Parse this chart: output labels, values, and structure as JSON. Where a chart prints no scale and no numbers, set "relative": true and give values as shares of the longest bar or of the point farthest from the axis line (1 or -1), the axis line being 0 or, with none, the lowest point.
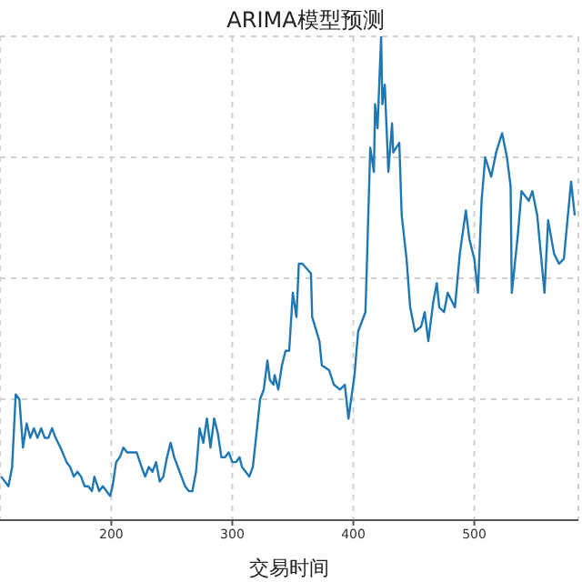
{
  "chart_data": {
    "type": "line",
    "title": "ARIMA模型预测",
    "xlabel": "交易时间",
    "relative": true,
    "xlim": [
      108,
      586
    ],
    "xticks": [
      200,
      300,
      400,
      500
    ],
    "grid": true,
    "legend": false,
    "marker": "none",
    "line_style": "solid",
    "series": [
      {
        "color": "#1f77b4",
        "x": [
          109,
          115,
          118,
          121,
          124,
          127,
          130,
          133,
          136,
          139,
          142,
          145,
          148,
          151,
          154,
          158,
          163,
          166,
          169,
          172,
          175,
          178,
          181,
          184,
          186,
          190,
          193,
          196,
          199,
          201,
          204,
          207,
          210,
          213,
          216,
          221,
          225,
          228,
          231,
          234,
          237,
          240,
          243,
          246,
          249,
          252,
          255,
          258,
          261,
          264,
          267,
          270,
          273,
          276,
          279,
          282,
          285,
          288,
          291,
          294,
          297,
          300,
          303,
          306,
          308,
          311,
          314,
          317,
          323,
          326,
          329,
          331,
          334,
          335,
          338,
          341,
          344,
          347,
          350,
          353,
          355,
          358,
          365,
          366,
          372,
          374,
          380,
          384,
          389,
          393,
          396,
          401,
          404,
          410,
          411,
          414,
          417,
          418,
          420,
          423,
          424,
          426,
          429,
          432,
          433,
          438,
          440,
          444,
          447,
          451,
          456,
          459,
          462,
          466,
          469,
          471,
          475,
          478,
          484,
          488,
          493,
          496,
          500,
          503,
          506,
          509,
          514,
          518,
          523,
          527,
          530,
          531,
          536,
          539,
          545,
          548,
          552,
          558,
          561,
          566,
          570,
          574,
          577,
          580,
          583
        ],
        "values": [
          0.09,
          0.07,
          0.11,
          0.26,
          0.25,
          0.15,
          0.2,
          0.17,
          0.19,
          0.17,
          0.19,
          0.17,
          0.17,
          0.19,
          0.17,
          0.15,
          0.12,
          0.11,
          0.09,
          0.1,
          0.09,
          0.07,
          0.07,
          0.06,
          0.09,
          0.06,
          0.07,
          0.06,
          0.05,
          0.07,
          0.12,
          0.13,
          0.15,
          0.14,
          0.14,
          0.14,
          0.11,
          0.09,
          0.11,
          0.1,
          0.12,
          0.08,
          0.09,
          0.13,
          0.16,
          0.13,
          0.11,
          0.09,
          0.07,
          0.06,
          0.06,
          0.1,
          0.19,
          0.16,
          0.21,
          0.15,
          0.21,
          0.18,
          0.13,
          0.13,
          0.14,
          0.12,
          0.12,
          0.13,
          0.11,
          0.1,
          0.09,
          0.11,
          0.25,
          0.27,
          0.33,
          0.29,
          0.28,
          0.3,
          0.27,
          0.32,
          0.35,
          0.35,
          0.47,
          0.42,
          0.53,
          0.53,
          0.51,
          0.42,
          0.37,
          0.32,
          0.31,
          0.28,
          0.27,
          0.28,
          0.21,
          0.3,
          0.39,
          0.43,
          0.51,
          0.77,
          0.72,
          0.86,
          0.81,
          1,
          0.86,
          0.9,
          0.72,
          0.82,
          0.76,
          0.78,
          0.63,
          0.54,
          0.44,
          0.39,
          0.4,
          0.43,
          0.37,
          0.45,
          0.49,
          0.44,
          0.43,
          0.47,
          0.44,
          0.55,
          0.64,
          0.58,
          0.54,
          0.47,
          0.66,
          0.75,
          0.71,
          0.76,
          0.8,
          0.75,
          0.69,
          0.47,
          0.59,
          0.68,
          0.66,
          0.68,
          0.63,
          0.47,
          0.62,
          0.55,
          0.53,
          0.54,
          0.62,
          0.7,
          0.63
        ]
      }
    ]
  }
}
